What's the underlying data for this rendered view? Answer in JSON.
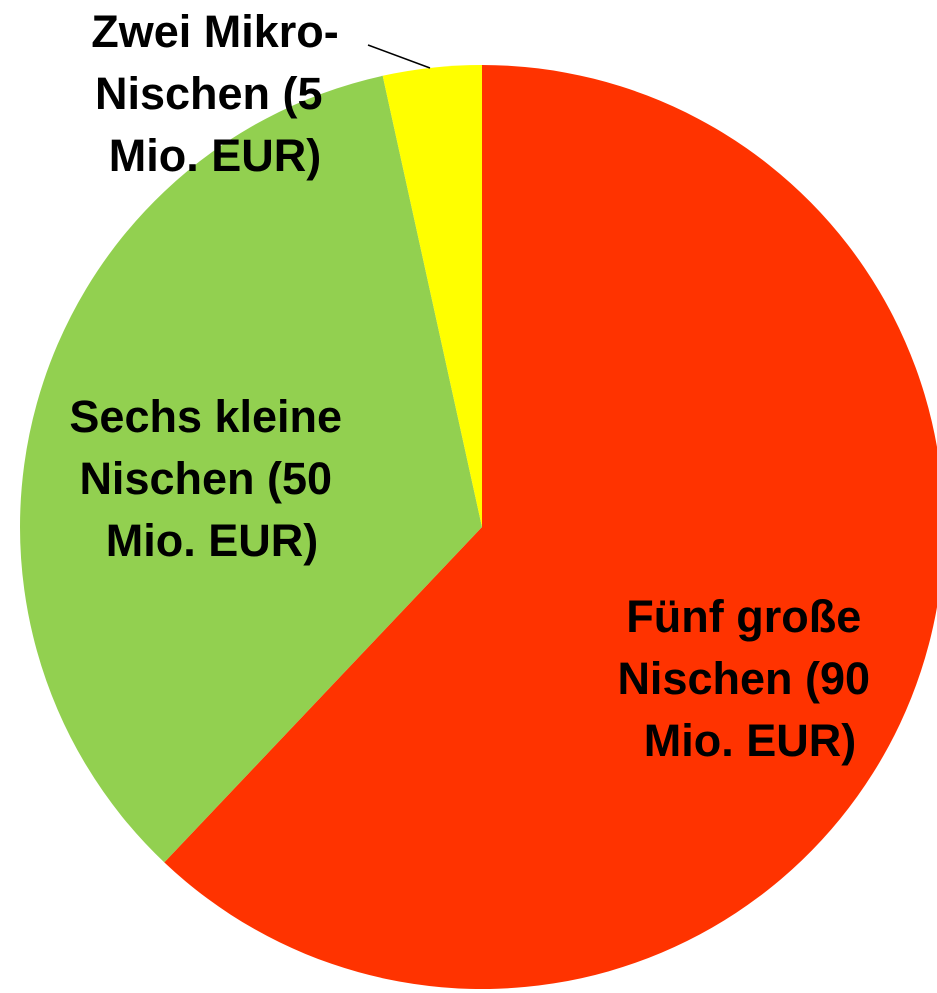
{
  "chart_data": {
    "type": "pie",
    "categories": [
      "Fünf große Nischen (90 Mio. EUR)",
      "Sechs kleine Nischen (50 Mio. EUR)",
      "Zwei Mikro-Nischen (5 Mio. EUR)"
    ],
    "values": [
      90,
      50,
      5
    ],
    "colors": [
      "#ff3300",
      "#92d050",
      "#ffff00"
    ]
  }
}
